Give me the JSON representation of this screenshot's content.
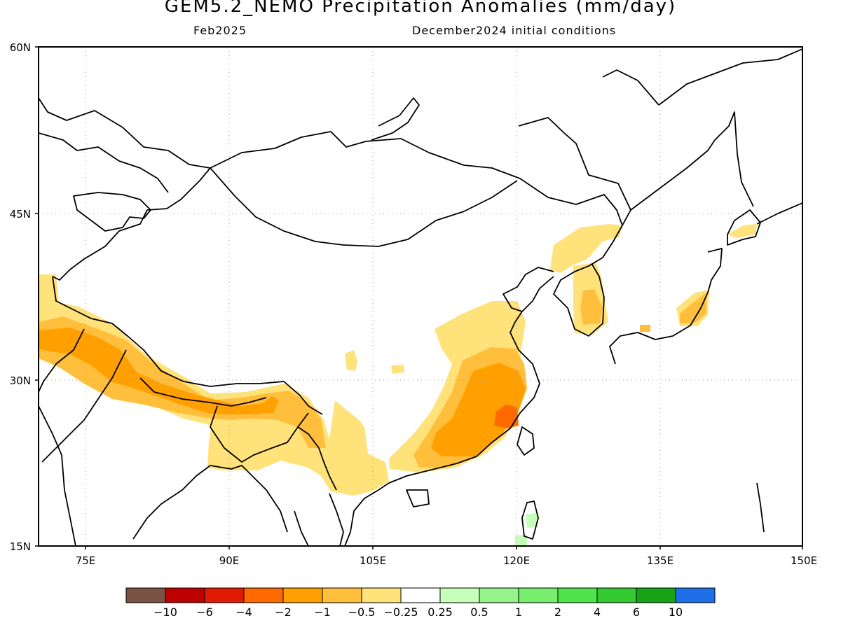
{
  "header": {
    "title": "GEM5.2_NEMO Precipitation Anomalies (mm/day)",
    "valid_month": "Feb2025",
    "initial_conditions": "December2024 initial conditions"
  },
  "map": {
    "region": "East and South Asia",
    "projection": "cylindrical lat/lon",
    "lon_range": [
      70,
      150
    ],
    "lat_range": [
      15,
      60
    ],
    "gridlines": "dotted",
    "x_ticks": [
      "75E",
      "90E",
      "105E",
      "120E",
      "135E",
      "150E"
    ],
    "y_ticks": [
      "60N",
      "45N",
      "30N",
      "15N"
    ],
    "anomaly_areas": [
      {
        "name": "western-himalaya-dry",
        "category": "-1 to -0.5"
      },
      {
        "name": "nepal-himalaya-dry",
        "category": "-2 to -1"
      },
      {
        "name": "south-china-dry",
        "category": "-2 to -1"
      },
      {
        "name": "fujian-coast-dry",
        "category": "-4 to -2"
      },
      {
        "name": "korea-dry",
        "category": "-1 to -0.5"
      },
      {
        "name": "central-japan-dry",
        "category": "-1 to -0.5"
      },
      {
        "name": "taiwan-wet",
        "category": "0.25 to 0.5"
      }
    ]
  },
  "legend": {
    "colors": [
      "#7b5345",
      "#bd0000",
      "#e01b00",
      "#ff6a00",
      "#ffa000",
      "#ffbf3c",
      "#ffe27a",
      "#ffffff",
      "#c6ffba",
      "#95f58b",
      "#78ee6e",
      "#50e34b",
      "#35c932",
      "#16a316",
      "#1f6fe8"
    ],
    "labels": [
      "−10",
      "−6",
      "−4",
      "−2",
      "−1",
      "−0.5",
      "−0.25",
      "0.25",
      "0.5",
      "1",
      "2",
      "4",
      "6",
      "10"
    ]
  }
}
